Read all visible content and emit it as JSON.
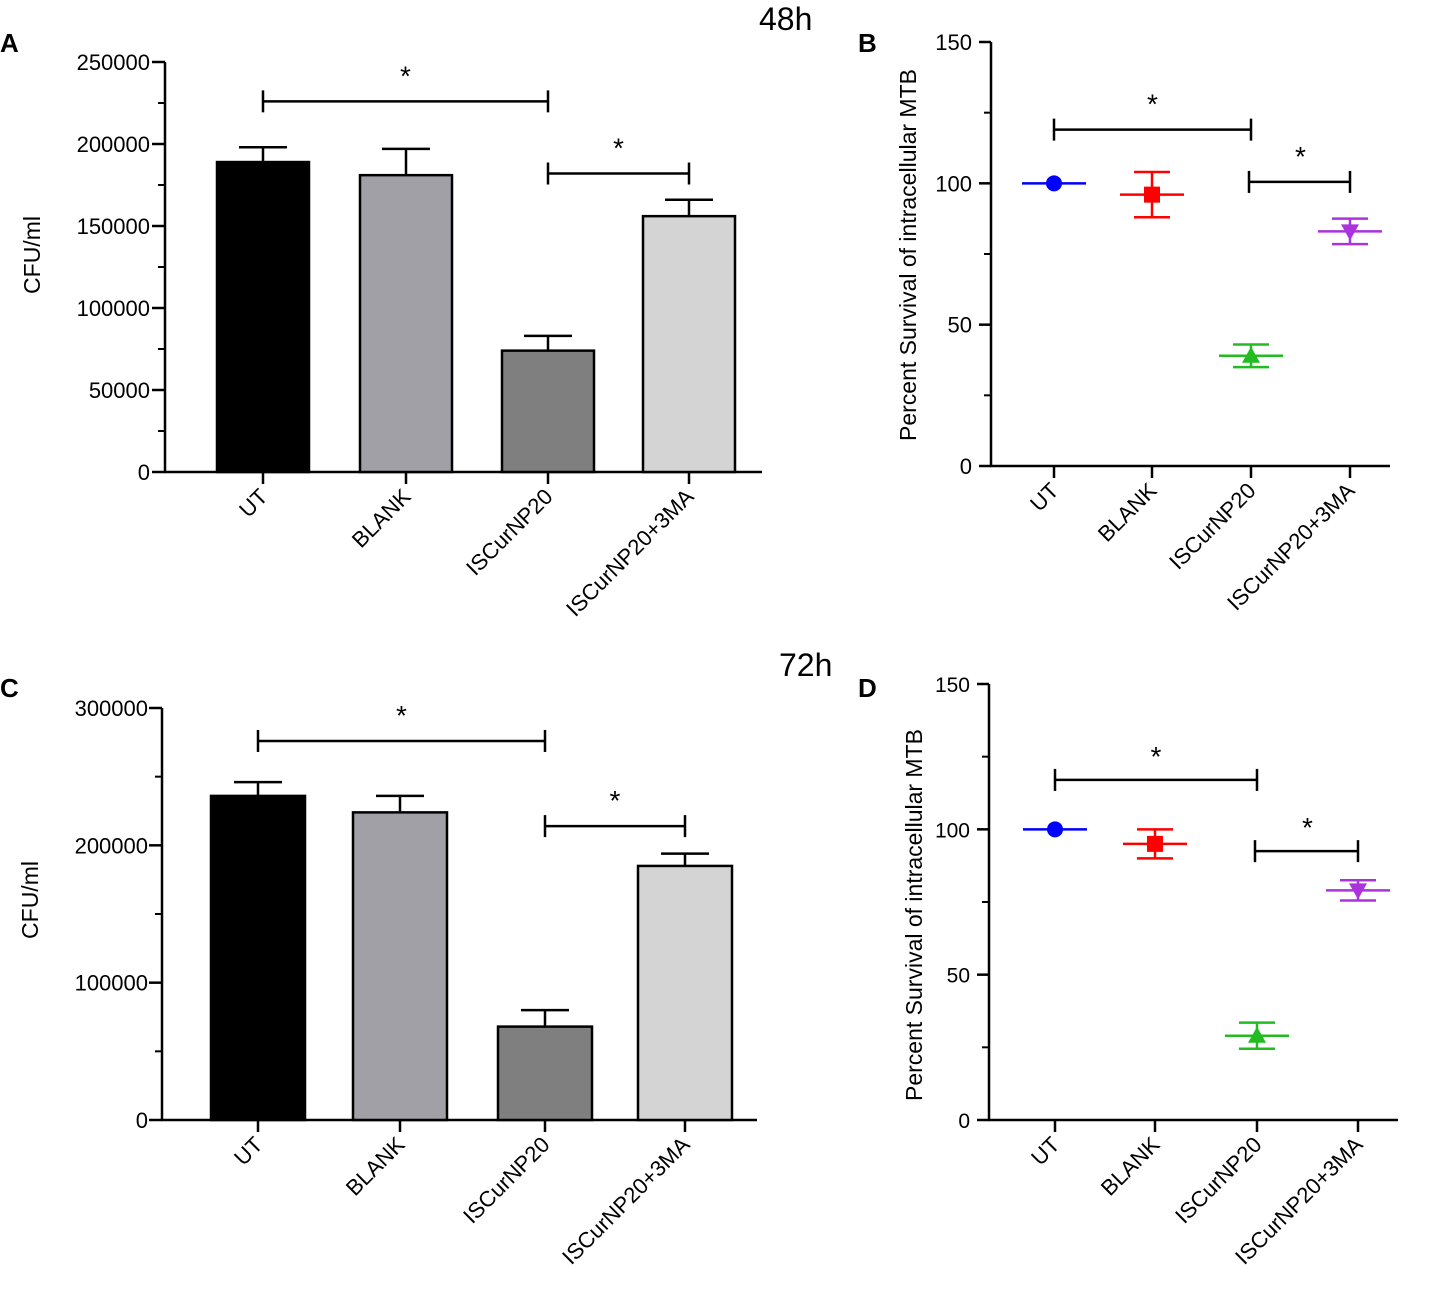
{
  "figure": {
    "panel_letters": [
      "A",
      "B",
      "C",
      "D"
    ],
    "time_labels": [
      "48h",
      "72h"
    ]
  },
  "chart_data": [
    {
      "id": "A",
      "type": "bar",
      "title": "48h",
      "ylabel": "CFU/ml",
      "categories": [
        "UT",
        "BLANK",
        "ISCurNP20",
        "ISCurNP20+3MA"
      ],
      "values": [
        189000,
        181000,
        74000,
        156000
      ],
      "errors": [
        9000,
        16000,
        9000,
        10000
      ],
      "colors": [
        "#000000",
        "#a0a0a6",
        "#7f7f7f",
        "#d4d4d4"
      ],
      "ylim": [
        0,
        250000
      ],
      "yticks": [
        0,
        50000,
        100000,
        150000,
        200000,
        250000
      ],
      "yticklabels": [
        "0",
        "50000",
        "100000",
        "150000",
        "200000",
        "250000"
      ],
      "significance": [
        {
          "from": 0,
          "to": 2,
          "label": "*",
          "y": 226000
        },
        {
          "from": 2,
          "to": 3,
          "label": "*",
          "y": 182000
        }
      ]
    },
    {
      "id": "B",
      "type": "scatter",
      "ylabel": "Percent Survival of intracellular MTB",
      "categories": [
        "UT",
        "BLANK",
        "ISCurNP20",
        "ISCurNP20+3MA"
      ],
      "values": [
        100,
        96,
        39,
        83
      ],
      "errors": [
        0,
        8,
        4,
        4.5
      ],
      "markers": [
        "circle",
        "square",
        "triangle-up",
        "triangle-down"
      ],
      "colors": [
        "#0000ff",
        "#ff0000",
        "#22bb22",
        "#aa33dd"
      ],
      "ylim": [
        0,
        150
      ],
      "yticks": [
        0,
        50,
        100,
        150
      ],
      "yticklabels": [
        "0",
        "50",
        "100",
        "150"
      ],
      "significance": [
        {
          "from": 0,
          "to": 2,
          "label": "*",
          "y": 119
        },
        {
          "from": 2,
          "to": 3,
          "label": "*",
          "y": 100.5
        }
      ]
    },
    {
      "id": "C",
      "type": "bar",
      "title": "72h",
      "ylabel": "CFU/ml",
      "categories": [
        "UT",
        "BLANK",
        "ISCurNP20",
        "ISCurNP20+3MA"
      ],
      "values": [
        236000,
        224000,
        68000,
        185000
      ],
      "errors": [
        10000,
        12000,
        12000,
        9000
      ],
      "colors": [
        "#000000",
        "#a0a0a6",
        "#7f7f7f",
        "#d4d4d4"
      ],
      "ylim": [
        0,
        300000
      ],
      "yticks": [
        0,
        100000,
        200000,
        300000
      ],
      "yticklabels": [
        "0",
        "100000",
        "200000",
        "300000"
      ],
      "significance": [
        {
          "from": 0,
          "to": 2,
          "label": "*",
          "y": 276000
        },
        {
          "from": 2,
          "to": 3,
          "label": "*",
          "y": 214000
        }
      ]
    },
    {
      "id": "D",
      "type": "scatter",
      "ylabel": "Percent Survival of intracellular MTB",
      "categories": [
        "UT",
        "BLANK",
        "ISCurNP20",
        "ISCurNP20+3MA"
      ],
      "values": [
        100,
        95,
        29,
        79
      ],
      "errors": [
        0,
        5,
        4.5,
        3.5
      ],
      "markers": [
        "circle",
        "square",
        "triangle-up",
        "triangle-down"
      ],
      "colors": [
        "#0000ff",
        "#ff0000",
        "#22bb22",
        "#aa33dd"
      ],
      "ylim": [
        0,
        150
      ],
      "yticks": [
        0,
        50,
        100,
        150
      ],
      "yticklabels": [
        "0",
        "50",
        "100",
        "150"
      ],
      "significance": [
        {
          "from": 0,
          "to": 2,
          "label": "*",
          "y": 117
        },
        {
          "from": 2,
          "to": 3,
          "label": "*",
          "y": 92.5
        }
      ]
    }
  ]
}
